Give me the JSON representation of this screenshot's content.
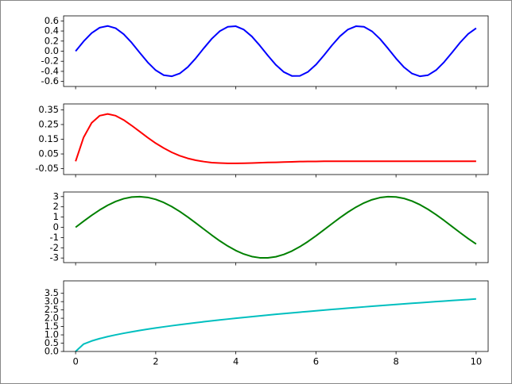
{
  "chart_data": [
    {
      "type": "line",
      "x": [
        0,
        0.2,
        0.4,
        0.6,
        0.8,
        1,
        1.2,
        1.4,
        1.6,
        1.8,
        2,
        2.2,
        2.4,
        2.6,
        2.8,
        3,
        3.2,
        3.4,
        3.6,
        3.8,
        4,
        4.2,
        4.4,
        4.6,
        4.8,
        5,
        5.2,
        5.4,
        5.6,
        5.8,
        6,
        6.2,
        6.4,
        6.6,
        6.8,
        7,
        7.2,
        7.4,
        7.6,
        7.8,
        8,
        8.2,
        8.4,
        8.6,
        8.8,
        9,
        9.2,
        9.4,
        9.6,
        9.8,
        10
      ],
      "values": [
        0,
        0.195,
        0.359,
        0.466,
        0.5,
        0.455,
        0.338,
        0.168,
        -0.029,
        -0.221,
        -0.378,
        -0.476,
        -0.498,
        -0.442,
        -0.316,
        -0.14,
        0.058,
        0.247,
        0.397,
        0.484,
        0.495,
        0.427,
        0.292,
        0.111,
        -0.087,
        -0.272,
        -0.414,
        -0.491,
        -0.49,
        -0.411,
        -0.268,
        -0.083,
        0.116,
        0.296,
        0.43,
        0.495,
        0.483,
        0.394,
        0.243,
        0.054,
        -0.144,
        -0.319,
        -0.444,
        -0.498,
        -0.475,
        -0.376,
        -0.217,
        -0.025,
        0.171,
        0.341,
        0.456
      ],
      "color": "#0000ff",
      "xlim": [
        -0.3,
        10.3
      ],
      "xticks": [
        0,
        2,
        4,
        6,
        8,
        10
      ],
      "ylim": [
        -0.7,
        0.7
      ],
      "yticks": [
        -0.6,
        -0.4,
        -0.2,
        {
          "value": 0,
          "label": "0.0"
        },
        0.2,
        0.4,
        0.6
      ]
    },
    {
      "type": "line",
      "x": [
        0,
        0.2,
        0.4,
        0.6,
        0.8,
        1,
        1.2,
        1.4,
        1.6,
        1.8,
        2,
        2.2,
        2.4,
        2.6,
        2.8,
        3,
        3.2,
        3.4,
        3.6,
        3.8,
        4,
        4.2,
        4.4,
        4.6,
        4.8,
        5,
        5.2,
        5.4,
        5.6,
        5.8,
        6,
        6.2,
        6.4,
        6.6,
        6.8,
        7,
        7.2,
        7.4,
        7.6,
        7.8,
        8,
        8.2,
        8.4,
        8.6,
        8.8,
        9,
        9.2,
        9.4,
        9.6,
        9.8,
        10
      ],
      "values": [
        0,
        0.163,
        0.261,
        0.31,
        0.322,
        0.31,
        0.281,
        0.243,
        0.202,
        0.161,
        0.123,
        0.09,
        0.061,
        0.038,
        0.02,
        0.007,
        -0.002,
        -0.009,
        -0.012,
        -0.014,
        -0.014,
        -0.013,
        -0.012,
        -0.01,
        -0.008,
        -0.007,
        -0.005,
        -0.004,
        -0.002,
        -0.001,
        -0.001,
        0,
        0,
        0,
        0,
        0,
        0,
        0,
        0,
        0,
        0,
        0,
        0,
        0,
        0,
        0,
        0,
        0,
        0,
        0,
        0
      ],
      "color": "#ff0000",
      "xlim": [
        -0.3,
        10.3
      ],
      "xticks": [
        0,
        2,
        4,
        6,
        8,
        10
      ],
      "ylim": [
        -0.09,
        0.39
      ],
      "yticks": [
        -0.05,
        0.05,
        0.15,
        0.25,
        0.35
      ]
    },
    {
      "type": "line",
      "x": [
        0,
        0.2,
        0.4,
        0.6,
        0.8,
        1,
        1.2,
        1.4,
        1.6,
        1.8,
        2,
        2.2,
        2.4,
        2.6,
        2.8,
        3,
        3.2,
        3.4,
        3.6,
        3.8,
        4,
        4.2,
        4.4,
        4.6,
        4.8,
        5,
        5.2,
        5.4,
        5.6,
        5.8,
        6,
        6.2,
        6.4,
        6.6,
        6.8,
        7,
        7.2,
        7.4,
        7.6,
        7.8,
        8,
        8.2,
        8.4,
        8.6,
        8.8,
        9,
        9.2,
        9.4,
        9.6,
        9.8,
        10
      ],
      "values": [
        0,
        0.596,
        1.168,
        1.694,
        2.152,
        2.524,
        2.796,
        2.956,
        2.999,
        2.921,
        2.728,
        2.426,
        2.027,
        1.547,
        1.005,
        0.423,
        -0.175,
        -0.767,
        -1.328,
        -1.836,
        -2.27,
        -2.615,
        -2.855,
        -2.981,
        -2.989,
        -2.877,
        -2.65,
        -2.318,
        -1.894,
        -1.394,
        -0.838,
        -0.249,
        0.35,
        0.935,
        1.482,
        1.971,
        2.381,
        2.696,
        2.904,
        2.996,
        2.968,
        2.822,
        2.564,
        2.203,
        1.755,
        1.236,
        0.669,
        0.074,
        -0.523,
        -1.1,
        -1.632
      ],
      "color": "#008000",
      "xlim": [
        -0.3,
        10.3
      ],
      "xticks": [
        0,
        2,
        4,
        6,
        8,
        10
      ],
      "ylim": [
        -3.45,
        3.45
      ],
      "yticks": [
        -3,
        -2,
        -1,
        0,
        1,
        2,
        3
      ]
    },
    {
      "type": "line",
      "x": [
        0,
        0.2,
        0.4,
        0.6,
        0.8,
        1,
        1.2,
        1.4,
        1.6,
        1.8,
        2,
        2.2,
        2.4,
        2.6,
        2.8,
        3,
        3.2,
        3.4,
        3.6,
        3.8,
        4,
        4.2,
        4.4,
        4.6,
        4.8,
        5,
        5.2,
        5.4,
        5.6,
        5.8,
        6,
        6.2,
        6.4,
        6.6,
        6.8,
        7,
        7.2,
        7.4,
        7.6,
        7.8,
        8,
        8.2,
        8.4,
        8.6,
        8.8,
        9,
        9.2,
        9.4,
        9.6,
        9.8,
        10
      ],
      "values": [
        0,
        0.447,
        0.632,
        0.775,
        0.894,
        1,
        1.095,
        1.183,
        1.265,
        1.342,
        1.414,
        1.483,
        1.549,
        1.612,
        1.673,
        1.732,
        1.789,
        1.844,
        1.897,
        1.949,
        2,
        2.049,
        2.098,
        2.145,
        2.191,
        2.236,
        2.28,
        2.324,
        2.366,
        2.408,
        2.449,
        2.49,
        2.53,
        2.569,
        2.608,
        2.646,
        2.683,
        2.72,
        2.757,
        2.793,
        2.828,
        2.864,
        2.898,
        2.933,
        2.966,
        3,
        3.033,
        3.066,
        3.098,
        3.13,
        3.162
      ],
      "color": "#00bfbf",
      "xlim": [
        -0.3,
        10.3
      ],
      "xticks": [
        0,
        2,
        4,
        6,
        8,
        10
      ],
      "ylim": [
        0,
        4.25
      ],
      "yticks": [
        {
          "value": 0,
          "label": "0.0"
        },
        0.5,
        {
          "value": 1,
          "label": "1.0"
        },
        1.5,
        {
          "value": 2,
          "label": "2.0"
        },
        2.5,
        {
          "value": 3,
          "label": "3.0"
        },
        3.5
      ]
    }
  ]
}
